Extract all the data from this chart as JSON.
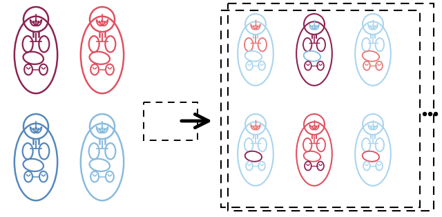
{
  "fig_width": 6.4,
  "fig_height": 3.14,
  "dpi": 100,
  "bg_color": "#ffffff",
  "dark_red": "#8B2252",
  "medium_red": "#E05060",
  "light_red": "#E87878",
  "dark_blue": "#5588BB",
  "medium_blue": "#88BBDD",
  "light_blue": "#AAD4EE",
  "arrow_color": "#222222",
  "dashed_color": "#222222"
}
